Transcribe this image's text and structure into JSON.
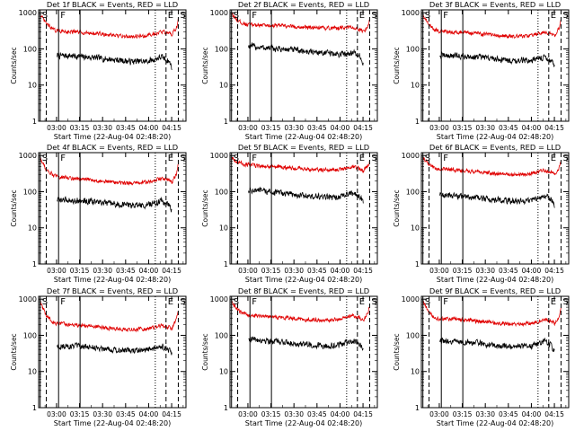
{
  "figure": {
    "panel_count": 9,
    "shared_x_label": "Start Time (22-Aug-04 02:48:20)",
    "shared_y_label": "Counts/sec",
    "x_tick_labels": [
      "03:00",
      "03:15",
      "03:30",
      "03:45",
      "04:00",
      "04:15"
    ],
    "y_tick_labels": [
      "1",
      "10",
      "100",
      "1000"
    ],
    "marker_labels": {
      "start": "S",
      "f": "F",
      "e": "E",
      "end": "S"
    },
    "colors": {
      "events": "#000000",
      "lld": "#e00000",
      "axes": "#000000"
    }
  },
  "chart_data": [
    {
      "type": "line",
      "title": "Det 1f BLACK = Events, RED = LLD",
      "xlabel": "Start Time (22-Aug-04 02:48:20)",
      "ylabel": "Counts/sec",
      "x_unit": "minutes after 22-Aug-04 02:48:20",
      "xlim": [
        0,
        96
      ],
      "ylim": [
        1,
        1200
      ],
      "yscale": "log",
      "x": [
        0,
        5,
        10,
        12,
        20,
        30,
        40,
        50,
        60,
        70,
        75,
        80,
        85,
        87,
        90,
        92
      ],
      "series": [
        {
          "name": "Events",
          "color": "#000000",
          "x_start": 12,
          "x_end": 87,
          "values": [
            null,
            null,
            null,
            65,
            65,
            60,
            55,
            50,
            45,
            45,
            50,
            60,
            45,
            30,
            null,
            null
          ]
        },
        {
          "name": "LLD",
          "color": "#e00000",
          "x_start": 1,
          "x_end": 91,
          "values": [
            1000,
            500,
            330,
            320,
            300,
            280,
            260,
            230,
            220,
            230,
            260,
            300,
            270,
            250,
            400,
            1000
          ]
        }
      ],
      "vlines": [
        {
          "label": "S",
          "x": 1,
          "style": "solid"
        },
        {
          "label": "",
          "x": 5,
          "style": "dashed"
        },
        {
          "label": "F",
          "x": 13,
          "style": "solid"
        },
        {
          "label": "",
          "x": 27,
          "style": "solid"
        },
        {
          "label": "",
          "x": 76,
          "style": "dotted"
        },
        {
          "label": "E",
          "x": 83,
          "style": "dashed"
        },
        {
          "label": "S",
          "x": 91,
          "style": "dashed"
        }
      ]
    },
    {
      "type": "line",
      "title": "Det 2f BLACK = Events, RED = LLD",
      "xlabel": "Start Time (22-Aug-04 02:48:20)",
      "ylabel": "Counts/sec",
      "x_unit": "minutes after 22-Aug-04 02:48:20",
      "xlim": [
        0,
        96
      ],
      "ylim": [
        1,
        1200
      ],
      "yscale": "log",
      "x": [
        0,
        5,
        10,
        12,
        20,
        30,
        40,
        50,
        60,
        70,
        75,
        80,
        85,
        87,
        90,
        92
      ],
      "series": [
        {
          "name": "Events",
          "color": "#000000",
          "x_start": 12,
          "x_end": 87,
          "values": [
            null,
            null,
            null,
            120,
            110,
            100,
            95,
            85,
            80,
            70,
            75,
            80,
            60,
            35,
            null,
            null
          ]
        },
        {
          "name": "LLD",
          "color": "#e00000",
          "x_start": 1,
          "x_end": 91,
          "values": [
            1000,
            600,
            480,
            470,
            460,
            440,
            420,
            390,
            370,
            380,
            390,
            400,
            350,
            300,
            450,
            1000
          ]
        }
      ],
      "vlines": [
        {
          "label": "S",
          "x": 1,
          "style": "solid"
        },
        {
          "label": "",
          "x": 5,
          "style": "dashed"
        },
        {
          "label": "F",
          "x": 13,
          "style": "solid"
        },
        {
          "label": "",
          "x": 27,
          "style": "solid"
        },
        {
          "label": "",
          "x": 76,
          "style": "dotted"
        },
        {
          "label": "E",
          "x": 83,
          "style": "dashed"
        },
        {
          "label": "S",
          "x": 91,
          "style": "dashed"
        }
      ]
    },
    {
      "type": "line",
      "title": "Det 3f BLACK = Events, RED = LLD",
      "xlabel": "Start Time (22-Aug-04 02:48:20)",
      "ylabel": "Counts/sec",
      "x_unit": "minutes after 22-Aug-04 02:48:20",
      "xlim": [
        0,
        96
      ],
      "ylim": [
        1,
        1200
      ],
      "yscale": "log",
      "x": [
        0,
        5,
        10,
        12,
        20,
        30,
        40,
        50,
        60,
        70,
        75,
        80,
        85,
        87,
        90,
        92
      ],
      "series": [
        {
          "name": "Events",
          "color": "#000000",
          "x_start": 12,
          "x_end": 87,
          "values": [
            null,
            null,
            null,
            65,
            65,
            62,
            58,
            52,
            48,
            48,
            52,
            60,
            45,
            32,
            null,
            null
          ]
        },
        {
          "name": "LLD",
          "color": "#e00000",
          "x_start": 1,
          "x_end": 91,
          "values": [
            1000,
            450,
            320,
            310,
            300,
            280,
            260,
            230,
            220,
            230,
            250,
            290,
            260,
            230,
            380,
            1000
          ]
        }
      ],
      "vlines": [
        {
          "label": "S",
          "x": 1,
          "style": "solid"
        },
        {
          "label": "",
          "x": 5,
          "style": "dashed"
        },
        {
          "label": "F",
          "x": 13,
          "style": "solid"
        },
        {
          "label": "",
          "x": 27,
          "style": "solid"
        },
        {
          "label": "",
          "x": 76,
          "style": "dotted"
        },
        {
          "label": "E",
          "x": 83,
          "style": "dashed"
        },
        {
          "label": "S",
          "x": 91,
          "style": "dashed"
        }
      ]
    },
    {
      "type": "line",
      "title": "Det 4f BLACK = Events, RED = LLD",
      "xlabel": "Start Time (22-Aug-04 02:48:20)",
      "ylabel": "Counts/sec",
      "x_unit": "minutes after 22-Aug-04 02:48:20",
      "xlim": [
        0,
        96
      ],
      "ylim": [
        1,
        1200
      ],
      "yscale": "log",
      "x": [
        0,
        5,
        10,
        12,
        20,
        30,
        40,
        50,
        60,
        70,
        75,
        80,
        85,
        87,
        90,
        92
      ],
      "series": [
        {
          "name": "Events",
          "color": "#000000",
          "x_start": 12,
          "x_end": 87,
          "values": [
            null,
            null,
            null,
            60,
            58,
            55,
            50,
            45,
            42,
            42,
            48,
            55,
            42,
            30,
            null,
            null
          ]
        },
        {
          "name": "LLD",
          "color": "#e00000",
          "x_start": 1,
          "x_end": 91,
          "values": [
            1000,
            400,
            280,
            260,
            240,
            220,
            200,
            180,
            170,
            180,
            200,
            230,
            210,
            180,
            330,
            1000
          ]
        }
      ],
      "vlines": [
        {
          "label": "S",
          "x": 1,
          "style": "solid"
        },
        {
          "label": "",
          "x": 5,
          "style": "dashed"
        },
        {
          "label": "F",
          "x": 13,
          "style": "solid"
        },
        {
          "label": "",
          "x": 27,
          "style": "solid"
        },
        {
          "label": "",
          "x": 76,
          "style": "dotted"
        },
        {
          "label": "E",
          "x": 83,
          "style": "dashed"
        },
        {
          "label": "S",
          "x": 91,
          "style": "dashed"
        }
      ]
    },
    {
      "type": "line",
      "title": "Det 5f BLACK = Events, RED = LLD",
      "xlabel": "Start Time (22-Aug-04 02:48:20)",
      "ylabel": "Counts/sec",
      "x_unit": "minutes after 22-Aug-04 02:48:20",
      "xlim": [
        0,
        96
      ],
      "ylim": [
        1,
        1200
      ],
      "yscale": "log",
      "x": [
        0,
        5,
        10,
        12,
        20,
        30,
        40,
        50,
        60,
        70,
        75,
        80,
        85,
        87,
        90,
        92
      ],
      "series": [
        {
          "name": "Events",
          "color": "#000000",
          "x_start": 12,
          "x_end": 87,
          "values": [
            null,
            null,
            null,
            110,
            105,
            95,
            85,
            75,
            70,
            70,
            80,
            95,
            70,
            45,
            null,
            null
          ]
        },
        {
          "name": "LLD",
          "color": "#e00000",
          "x_start": 1,
          "x_end": 91,
          "values": [
            1000,
            650,
            560,
            550,
            520,
            480,
            450,
            420,
            400,
            400,
            430,
            480,
            430,
            380,
            550,
            1000
          ]
        }
      ],
      "vlines": [
        {
          "label": "S",
          "x": 1,
          "style": "solid"
        },
        {
          "label": "",
          "x": 5,
          "style": "dashed"
        },
        {
          "label": "F",
          "x": 13,
          "style": "solid"
        },
        {
          "label": "",
          "x": 27,
          "style": "solid"
        },
        {
          "label": "",
          "x": 76,
          "style": "dotted"
        },
        {
          "label": "E",
          "x": 83,
          "style": "dashed"
        },
        {
          "label": "S",
          "x": 91,
          "style": "dashed"
        }
      ]
    },
    {
      "type": "line",
      "title": "Det 6f BLACK = Events, RED = LLD",
      "xlabel": "Start Time (22-Aug-04 02:48:20)",
      "ylabel": "Counts/sec",
      "x_unit": "minutes after 22-Aug-04 02:48:20",
      "xlim": [
        0,
        96
      ],
      "ylim": [
        1,
        1200
      ],
      "yscale": "log",
      "x": [
        0,
        5,
        10,
        12,
        20,
        30,
        40,
        50,
        60,
        70,
        75,
        80,
        85,
        87,
        90,
        92
      ],
      "series": [
        {
          "name": "Events",
          "color": "#000000",
          "x_start": 12,
          "x_end": 87,
          "values": [
            null,
            null,
            null,
            80,
            78,
            72,
            65,
            58,
            55,
            55,
            65,
            80,
            60,
            40,
            null,
            null
          ]
        },
        {
          "name": "LLD",
          "color": "#e00000",
          "x_start": 1,
          "x_end": 91,
          "values": [
            1000,
            550,
            430,
            420,
            400,
            370,
            340,
            310,
            300,
            310,
            340,
            390,
            350,
            300,
            480,
            1000
          ]
        }
      ],
      "vlines": [
        {
          "label": "S",
          "x": 1,
          "style": "solid"
        },
        {
          "label": "",
          "x": 5,
          "style": "dashed"
        },
        {
          "label": "F",
          "x": 13,
          "style": "solid"
        },
        {
          "label": "",
          "x": 27,
          "style": "solid"
        },
        {
          "label": "",
          "x": 76,
          "style": "dotted"
        },
        {
          "label": "E",
          "x": 83,
          "style": "dashed"
        },
        {
          "label": "S",
          "x": 91,
          "style": "dashed"
        }
      ]
    },
    {
      "type": "line",
      "title": "Det 7f BLACK = Events, RED = LLD",
      "xlabel": "Start Time (22-Aug-04 02:48:20)",
      "ylabel": "Counts/sec",
      "x_unit": "minutes after 22-Aug-04 02:48:20",
      "xlim": [
        0,
        96
      ],
      "ylim": [
        1,
        1200
      ],
      "yscale": "log",
      "x": [
        0,
        5,
        10,
        12,
        20,
        30,
        40,
        50,
        60,
        70,
        75,
        80,
        85,
        87,
        90,
        92
      ],
      "series": [
        {
          "name": "Events",
          "color": "#000000",
          "x_start": 12,
          "x_end": 87,
          "values": [
            null,
            null,
            null,
            50,
            50,
            48,
            45,
            40,
            38,
            38,
            42,
            50,
            38,
            28,
            null,
            null
          ]
        },
        {
          "name": "LLD",
          "color": "#e00000",
          "x_start": 1,
          "x_end": 91,
          "values": [
            1000,
            350,
            220,
            210,
            200,
            185,
            170,
            150,
            145,
            150,
            165,
            190,
            170,
            150,
            300,
            1000
          ]
        }
      ],
      "vlines": [
        {
          "label": "S",
          "x": 1,
          "style": "solid"
        },
        {
          "label": "",
          "x": 5,
          "style": "dashed"
        },
        {
          "label": "F",
          "x": 13,
          "style": "solid"
        },
        {
          "label": "",
          "x": 27,
          "style": "solid"
        },
        {
          "label": "",
          "x": 76,
          "style": "dotted"
        },
        {
          "label": "E",
          "x": 83,
          "style": "dashed"
        },
        {
          "label": "S",
          "x": 91,
          "style": "dashed"
        }
      ]
    },
    {
      "type": "line",
      "title": "Det 8f BLACK = Events, RED = LLD",
      "xlabel": "Start Time (22-Aug-04 02:48:20)",
      "ylabel": "Counts/sec",
      "x_unit": "minutes after 22-Aug-04 02:48:20",
      "xlim": [
        0,
        96
      ],
      "ylim": [
        1,
        1200
      ],
      "yscale": "log",
      "x": [
        0,
        5,
        10,
        12,
        20,
        30,
        40,
        50,
        60,
        70,
        75,
        80,
        85,
        87,
        90,
        92
      ],
      "series": [
        {
          "name": "Events",
          "color": "#000000",
          "x_start": 12,
          "x_end": 87,
          "values": [
            null,
            null,
            null,
            80,
            75,
            68,
            62,
            55,
            52,
            52,
            60,
            72,
            55,
            38,
            null,
            null
          ]
        },
        {
          "name": "LLD",
          "color": "#e00000",
          "x_start": 1,
          "x_end": 91,
          "values": [
            1000,
            500,
            380,
            370,
            350,
            320,
            300,
            270,
            260,
            270,
            300,
            340,
            300,
            260,
            420,
            1000
          ]
        }
      ],
      "vlines": [
        {
          "label": "S",
          "x": 1,
          "style": "solid"
        },
        {
          "label": "",
          "x": 5,
          "style": "dashed"
        },
        {
          "label": "F",
          "x": 13,
          "style": "solid"
        },
        {
          "label": "",
          "x": 27,
          "style": "solid"
        },
        {
          "label": "",
          "x": 76,
          "style": "dotted"
        },
        {
          "label": "E",
          "x": 83,
          "style": "dashed"
        },
        {
          "label": "S",
          "x": 91,
          "style": "dashed"
        }
      ]
    },
    {
      "type": "line",
      "title": "Det 9f BLACK = Events, RED = LLD",
      "xlabel": "Start Time (22-Aug-04 02:48:20)",
      "ylabel": "Counts/sec",
      "x_unit": "minutes after 22-Aug-04 02:48:20",
      "xlim": [
        0,
        96
      ],
      "ylim": [
        1,
        1200
      ],
      "yscale": "log",
      "x": [
        0,
        5,
        10,
        12,
        20,
        30,
        40,
        50,
        60,
        70,
        75,
        80,
        85,
        87,
        90,
        92
      ],
      "series": [
        {
          "name": "Events",
          "color": "#000000",
          "x_start": 12,
          "x_end": 87,
          "values": [
            null,
            null,
            null,
            70,
            68,
            64,
            58,
            52,
            48,
            48,
            55,
            68,
            50,
            35,
            null,
            null
          ]
        },
        {
          "name": "LLD",
          "color": "#e00000",
          "x_start": 1,
          "x_end": 91,
          "values": [
            1000,
            420,
            300,
            290,
            280,
            260,
            240,
            215,
            205,
            215,
            235,
            270,
            240,
            210,
            360,
            1000
          ]
        }
      ],
      "vlines": [
        {
          "label": "S",
          "x": 1,
          "style": "solid"
        },
        {
          "label": "",
          "x": 5,
          "style": "dashed"
        },
        {
          "label": "F",
          "x": 13,
          "style": "solid"
        },
        {
          "label": "",
          "x": 27,
          "style": "solid"
        },
        {
          "label": "",
          "x": 76,
          "style": "dotted"
        },
        {
          "label": "E",
          "x": 83,
          "style": "dashed"
        },
        {
          "label": "S",
          "x": 91,
          "style": "dashed"
        }
      ]
    }
  ]
}
